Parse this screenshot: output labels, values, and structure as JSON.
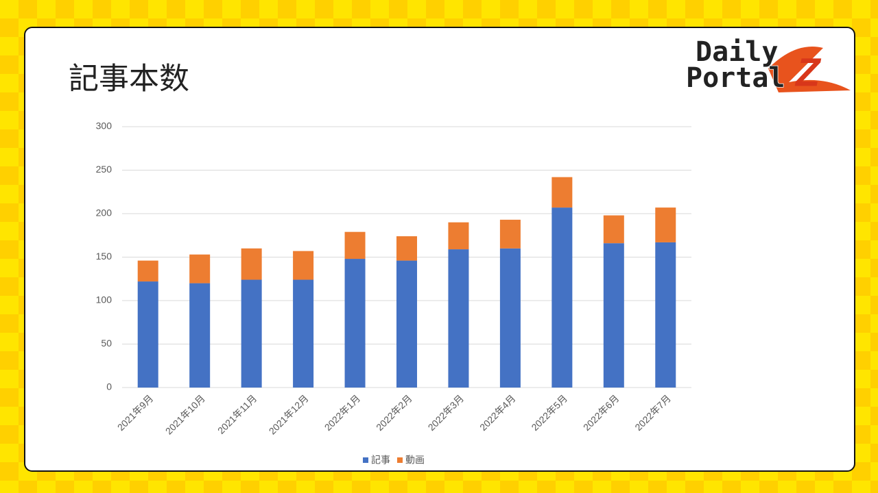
{
  "logo": {
    "line1": "Daily",
    "line2": "Portal",
    "mark": "Z"
  },
  "chart_data": {
    "type": "stacked_bar",
    "title": "記事本数",
    "categories": [
      "2021年9月",
      "2021年10月",
      "2021年11月",
      "2021年12月",
      "2022年1月",
      "2022年2月",
      "2022年3月",
      "2022年4月",
      "2022年5月",
      "2022年6月",
      "2022年7月"
    ],
    "series": [
      {
        "name": "記事",
        "color": "#4472c4",
        "values": [
          122,
          120,
          124,
          124,
          148,
          146,
          159,
          160,
          207,
          166,
          167
        ]
      },
      {
        "name": "動画",
        "color": "#ed7d31",
        "values": [
          24,
          33,
          36,
          33,
          31,
          28,
          31,
          33,
          35,
          32,
          40
        ]
      }
    ],
    "ylim": [
      0,
      300
    ],
    "yticks": [
      0,
      50,
      100,
      150,
      200,
      250,
      300
    ],
    "grid": true,
    "legend": "bottom"
  }
}
